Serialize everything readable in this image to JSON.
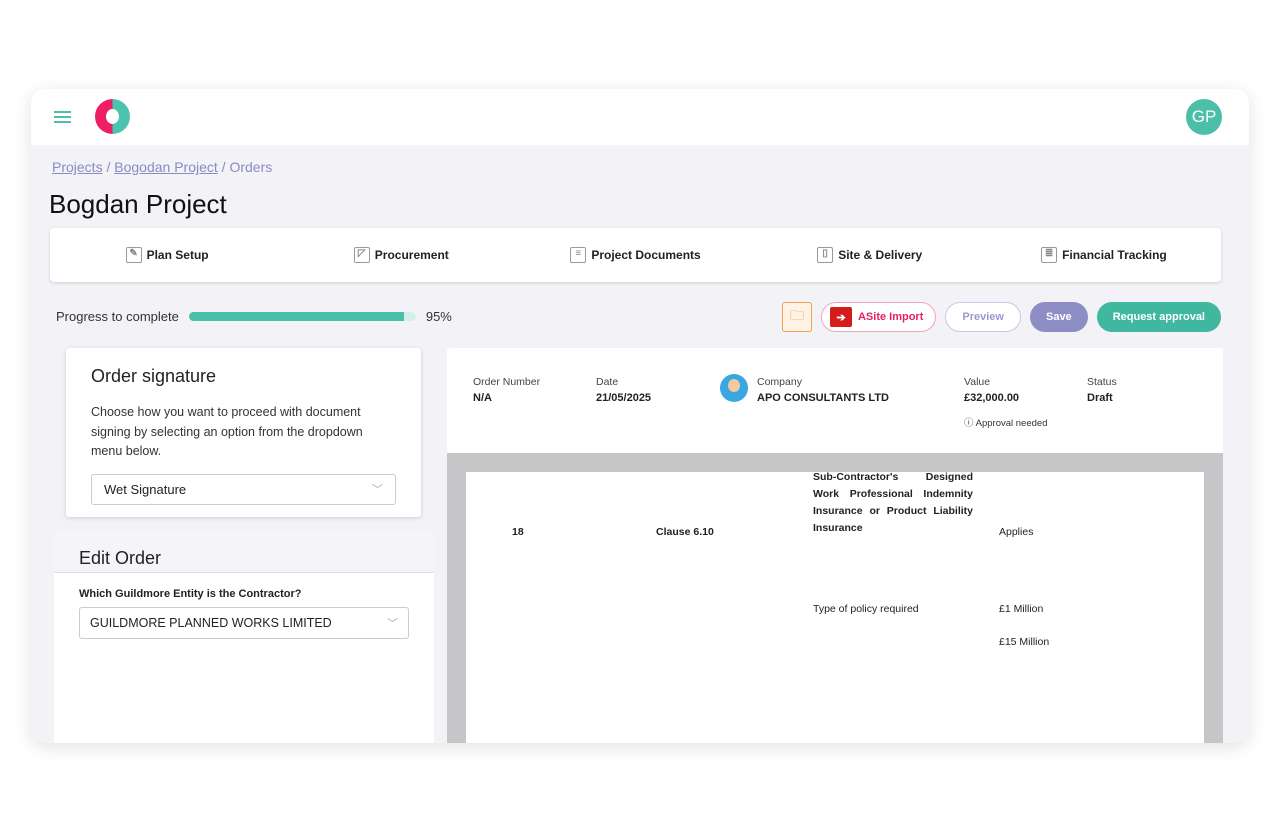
{
  "header": {
    "avatar": "GP"
  },
  "breadcrumb": [
    "Projects",
    "Bogodan Project",
    "Orders"
  ],
  "title": "Bogdan Project",
  "nav": [
    {
      "label": "Plan Setup",
      "icon": "drafting-icon"
    },
    {
      "label": "Procurement",
      "icon": "ruler-icon"
    },
    {
      "label": "Project Documents",
      "icon": "documents-icon"
    },
    {
      "label": "Site & Delivery",
      "icon": "site-icon"
    },
    {
      "label": "Financial Tracking",
      "icon": "ledger-icon"
    }
  ],
  "progress": {
    "label": "Progress to complete",
    "value": 95,
    "text": "95%"
  },
  "toolbar": {
    "asite": "ASite Import",
    "preview": "Preview",
    "save": "Save",
    "request": "Request approval"
  },
  "signature": {
    "title": "Order signature",
    "desc": "Choose how you want to proceed with document signing by selecting an option from the dropdown menu below.",
    "value": "Wet Signature"
  },
  "edit": {
    "title": "Edit Order",
    "question": "Which Guildmore Entity is the Contractor?",
    "value": "GUILDMORE PLANNED WORKS LIMITED"
  },
  "info": {
    "order_label": "Order Number",
    "order": "N/A",
    "date_label": "Date",
    "date": "21/05/2025",
    "company_label": "Company",
    "company": "APO CONSULTANTS LTD",
    "value_label": "Value",
    "value": "£32,000.00",
    "status_label": "Status",
    "status": "Draft",
    "approval": "Approval needed"
  },
  "document": {
    "num": "18",
    "clause": "Clause 6.10",
    "desc": "Sub-Contractor's Designed Work Professional Indemnity Insurance or Product Liability Insurance",
    "applies": "Applies",
    "policy": "Type of policy required",
    "amt1": "£1 Million",
    "amt2": "£15 Million"
  }
}
